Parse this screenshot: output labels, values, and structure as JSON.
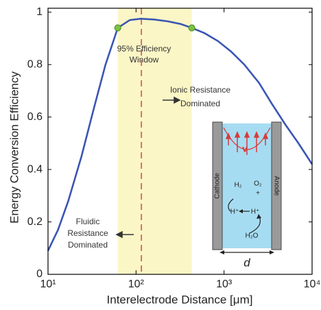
{
  "chart_data": {
    "type": "line",
    "xscale": "log",
    "xlabel": "Interelectrode Distance [μm]",
    "ylabel": "Energy Conversion Efficiency",
    "xlim": [
      10,
      10000
    ],
    "ylim": [
      0,
      1.015
    ],
    "xticks": [
      {
        "value": 10,
        "label": "10¹"
      },
      {
        "value": 100,
        "label": "10²"
      },
      {
        "value": 1000,
        "label": "10³"
      },
      {
        "value": 10000,
        "label": "10⁴"
      }
    ],
    "yticks": [
      0,
      0.2,
      0.4,
      0.6,
      0.8,
      1
    ],
    "x": [
      10,
      13,
      17,
      24,
      33,
      45,
      62,
      85,
      113,
      160,
      230,
      320,
      430,
      600,
      850,
      1200,
      1700,
      2500,
      3500,
      5000,
      7000,
      10000
    ],
    "series": [
      {
        "color": "#3a55b4",
        "values": [
          0.09,
          0.17,
          0.28,
          0.45,
          0.63,
          0.8,
          0.94,
          0.97,
          0.975,
          0.972,
          0.965,
          0.955,
          0.94,
          0.92,
          0.89,
          0.85,
          0.8,
          0.73,
          0.65,
          0.57,
          0.5,
          0.42
        ]
      }
    ],
    "markers": {
      "x": [
        62,
        430
      ],
      "values": [
        0.94,
        0.94
      ],
      "color": "#7cc242"
    },
    "window": {
      "xlim": [
        62,
        430
      ],
      "color": "#fbf6c6"
    },
    "optimum": {
      "x": 115,
      "color": "#e0605a"
    },
    "annotations": {
      "window_label": [
        "95% Efficiency",
        "Window"
      ],
      "ionic": [
        "Ionic Resistance",
        "Dominated"
      ],
      "fluidic": [
        "Fluidic",
        "Resistance",
        "Dominated"
      ]
    },
    "inset": {
      "cathode": "Cathode",
      "anode": "Anode",
      "h2": "H₂",
      "o2": "O₂",
      "plus": "+",
      "h_left": "H⁺",
      "h_right": "H⁺",
      "water": "H₂O",
      "velocity": "v",
      "gap": "d"
    }
  }
}
